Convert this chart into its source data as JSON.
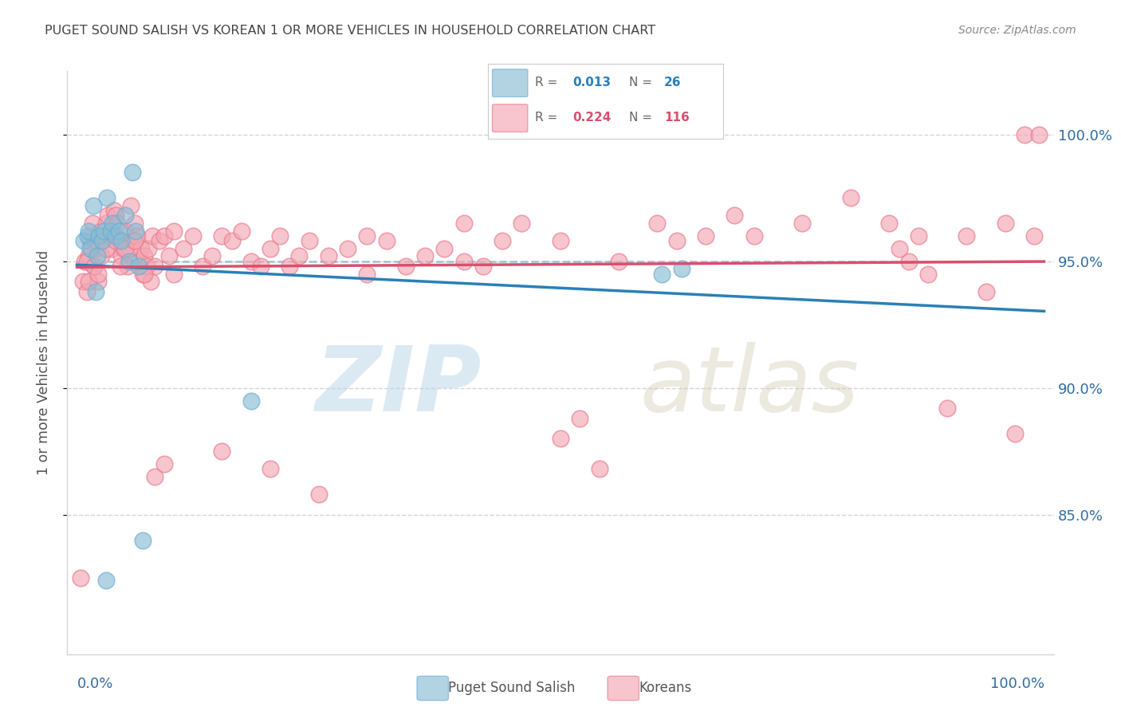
{
  "title": "PUGET SOUND SALISH VS KOREAN 1 OR MORE VEHICLES IN HOUSEHOLD CORRELATION CHART",
  "source": "Source: ZipAtlas.com",
  "ylabel": "1 or more Vehicles in Household",
  "ylim": [
    0.795,
    1.025
  ],
  "xlim": [
    -0.01,
    1.01
  ],
  "watermark_zip": "ZIP",
  "watermark_atlas": "atlas",
  "blue_color": "#89bdd3",
  "blue_edge": "#6baed6",
  "pink_color": "#f4a7b3",
  "pink_edge": "#e87a8e",
  "blue_line_color": "#2980b9",
  "pink_line_color": "#d94f6e",
  "axis_label_color": "#2e6da4",
  "title_color": "#444444",
  "grid_color": "#d5d5d5",
  "yticks": [
    0.85,
    0.9,
    0.95,
    1.0
  ],
  "ytick_labels": [
    "85.0%",
    "90.0%",
    "95.0%",
    "100.0%"
  ],
  "blue_r": "0.013",
  "blue_n": "26",
  "pink_r": "0.224",
  "pink_n": "116",
  "blue_x": [
    0.007,
    0.011,
    0.012,
    0.014,
    0.017,
    0.019,
    0.021,
    0.023,
    0.026,
    0.028,
    0.031,
    0.035,
    0.037,
    0.04,
    0.043,
    0.046,
    0.05,
    0.054,
    0.057,
    0.061,
    0.064,
    0.068,
    0.18,
    0.605,
    0.625,
    0.03
  ],
  "blue_y": [
    0.958,
    0.96,
    0.962,
    0.955,
    0.972,
    0.938,
    0.952,
    0.96,
    0.958,
    0.962,
    0.975,
    0.962,
    0.965,
    0.96,
    0.962,
    0.958,
    0.968,
    0.95,
    0.985,
    0.962,
    0.948,
    0.84,
    0.895,
    0.945,
    0.947,
    0.824
  ],
  "pink_x": [
    0.004,
    0.006,
    0.008,
    0.01,
    0.012,
    0.014,
    0.016,
    0.018,
    0.02,
    0.022,
    0.024,
    0.026,
    0.028,
    0.03,
    0.032,
    0.034,
    0.036,
    0.038,
    0.04,
    0.042,
    0.044,
    0.046,
    0.048,
    0.05,
    0.052,
    0.054,
    0.056,
    0.058,
    0.06,
    0.062,
    0.064,
    0.066,
    0.068,
    0.07,
    0.072,
    0.074,
    0.076,
    0.078,
    0.08,
    0.085,
    0.09,
    0.095,
    0.1,
    0.11,
    0.12,
    0.13,
    0.14,
    0.15,
    0.16,
    0.17,
    0.18,
    0.19,
    0.2,
    0.21,
    0.22,
    0.23,
    0.24,
    0.26,
    0.28,
    0.3,
    0.32,
    0.34,
    0.36,
    0.38,
    0.4,
    0.42,
    0.44,
    0.46,
    0.5,
    0.52,
    0.54,
    0.56,
    0.6,
    0.62,
    0.65,
    0.68,
    0.7,
    0.75,
    0.8,
    0.84,
    0.86,
    0.88,
    0.9,
    0.92,
    0.94,
    0.96,
    0.97,
    0.98,
    0.99,
    0.995,
    0.85,
    0.87,
    0.01,
    0.012,
    0.015,
    0.018,
    0.02,
    0.022,
    0.025,
    0.028,
    0.03,
    0.035,
    0.04,
    0.045,
    0.05,
    0.06,
    0.07,
    0.08,
    0.09,
    0.1,
    0.15,
    0.2,
    0.25,
    0.3,
    0.4,
    0.5
  ],
  "pink_y": [
    0.825,
    0.942,
    0.95,
    0.938,
    0.952,
    0.958,
    0.965,
    0.948,
    0.955,
    0.942,
    0.962,
    0.958,
    0.96,
    0.965,
    0.968,
    0.96,
    0.955,
    0.97,
    0.968,
    0.965,
    0.958,
    0.952,
    0.955,
    0.962,
    0.948,
    0.955,
    0.972,
    0.958,
    0.965,
    0.96,
    0.95,
    0.955,
    0.945,
    0.952,
    0.948,
    0.955,
    0.942,
    0.96,
    0.948,
    0.958,
    0.96,
    0.952,
    0.962,
    0.955,
    0.96,
    0.948,
    0.952,
    0.96,
    0.958,
    0.962,
    0.95,
    0.948,
    0.955,
    0.96,
    0.948,
    0.952,
    0.958,
    0.952,
    0.955,
    0.96,
    0.958,
    0.948,
    0.952,
    0.955,
    0.965,
    0.948,
    0.958,
    0.965,
    0.88,
    0.888,
    0.868,
    0.95,
    0.965,
    0.958,
    0.96,
    0.968,
    0.96,
    0.965,
    0.975,
    0.965,
    0.95,
    0.945,
    0.892,
    0.96,
    0.938,
    0.965,
    0.882,
    1.0,
    0.96,
    1.0,
    0.955,
    0.96,
    0.95,
    0.942,
    0.955,
    0.948,
    0.958,
    0.945,
    0.952,
    0.96,
    0.955,
    0.962,
    0.958,
    0.948,
    0.955,
    0.958,
    0.945,
    0.865,
    0.87,
    0.945,
    0.875,
    0.868,
    0.858,
    0.945,
    0.95,
    0.958
  ]
}
